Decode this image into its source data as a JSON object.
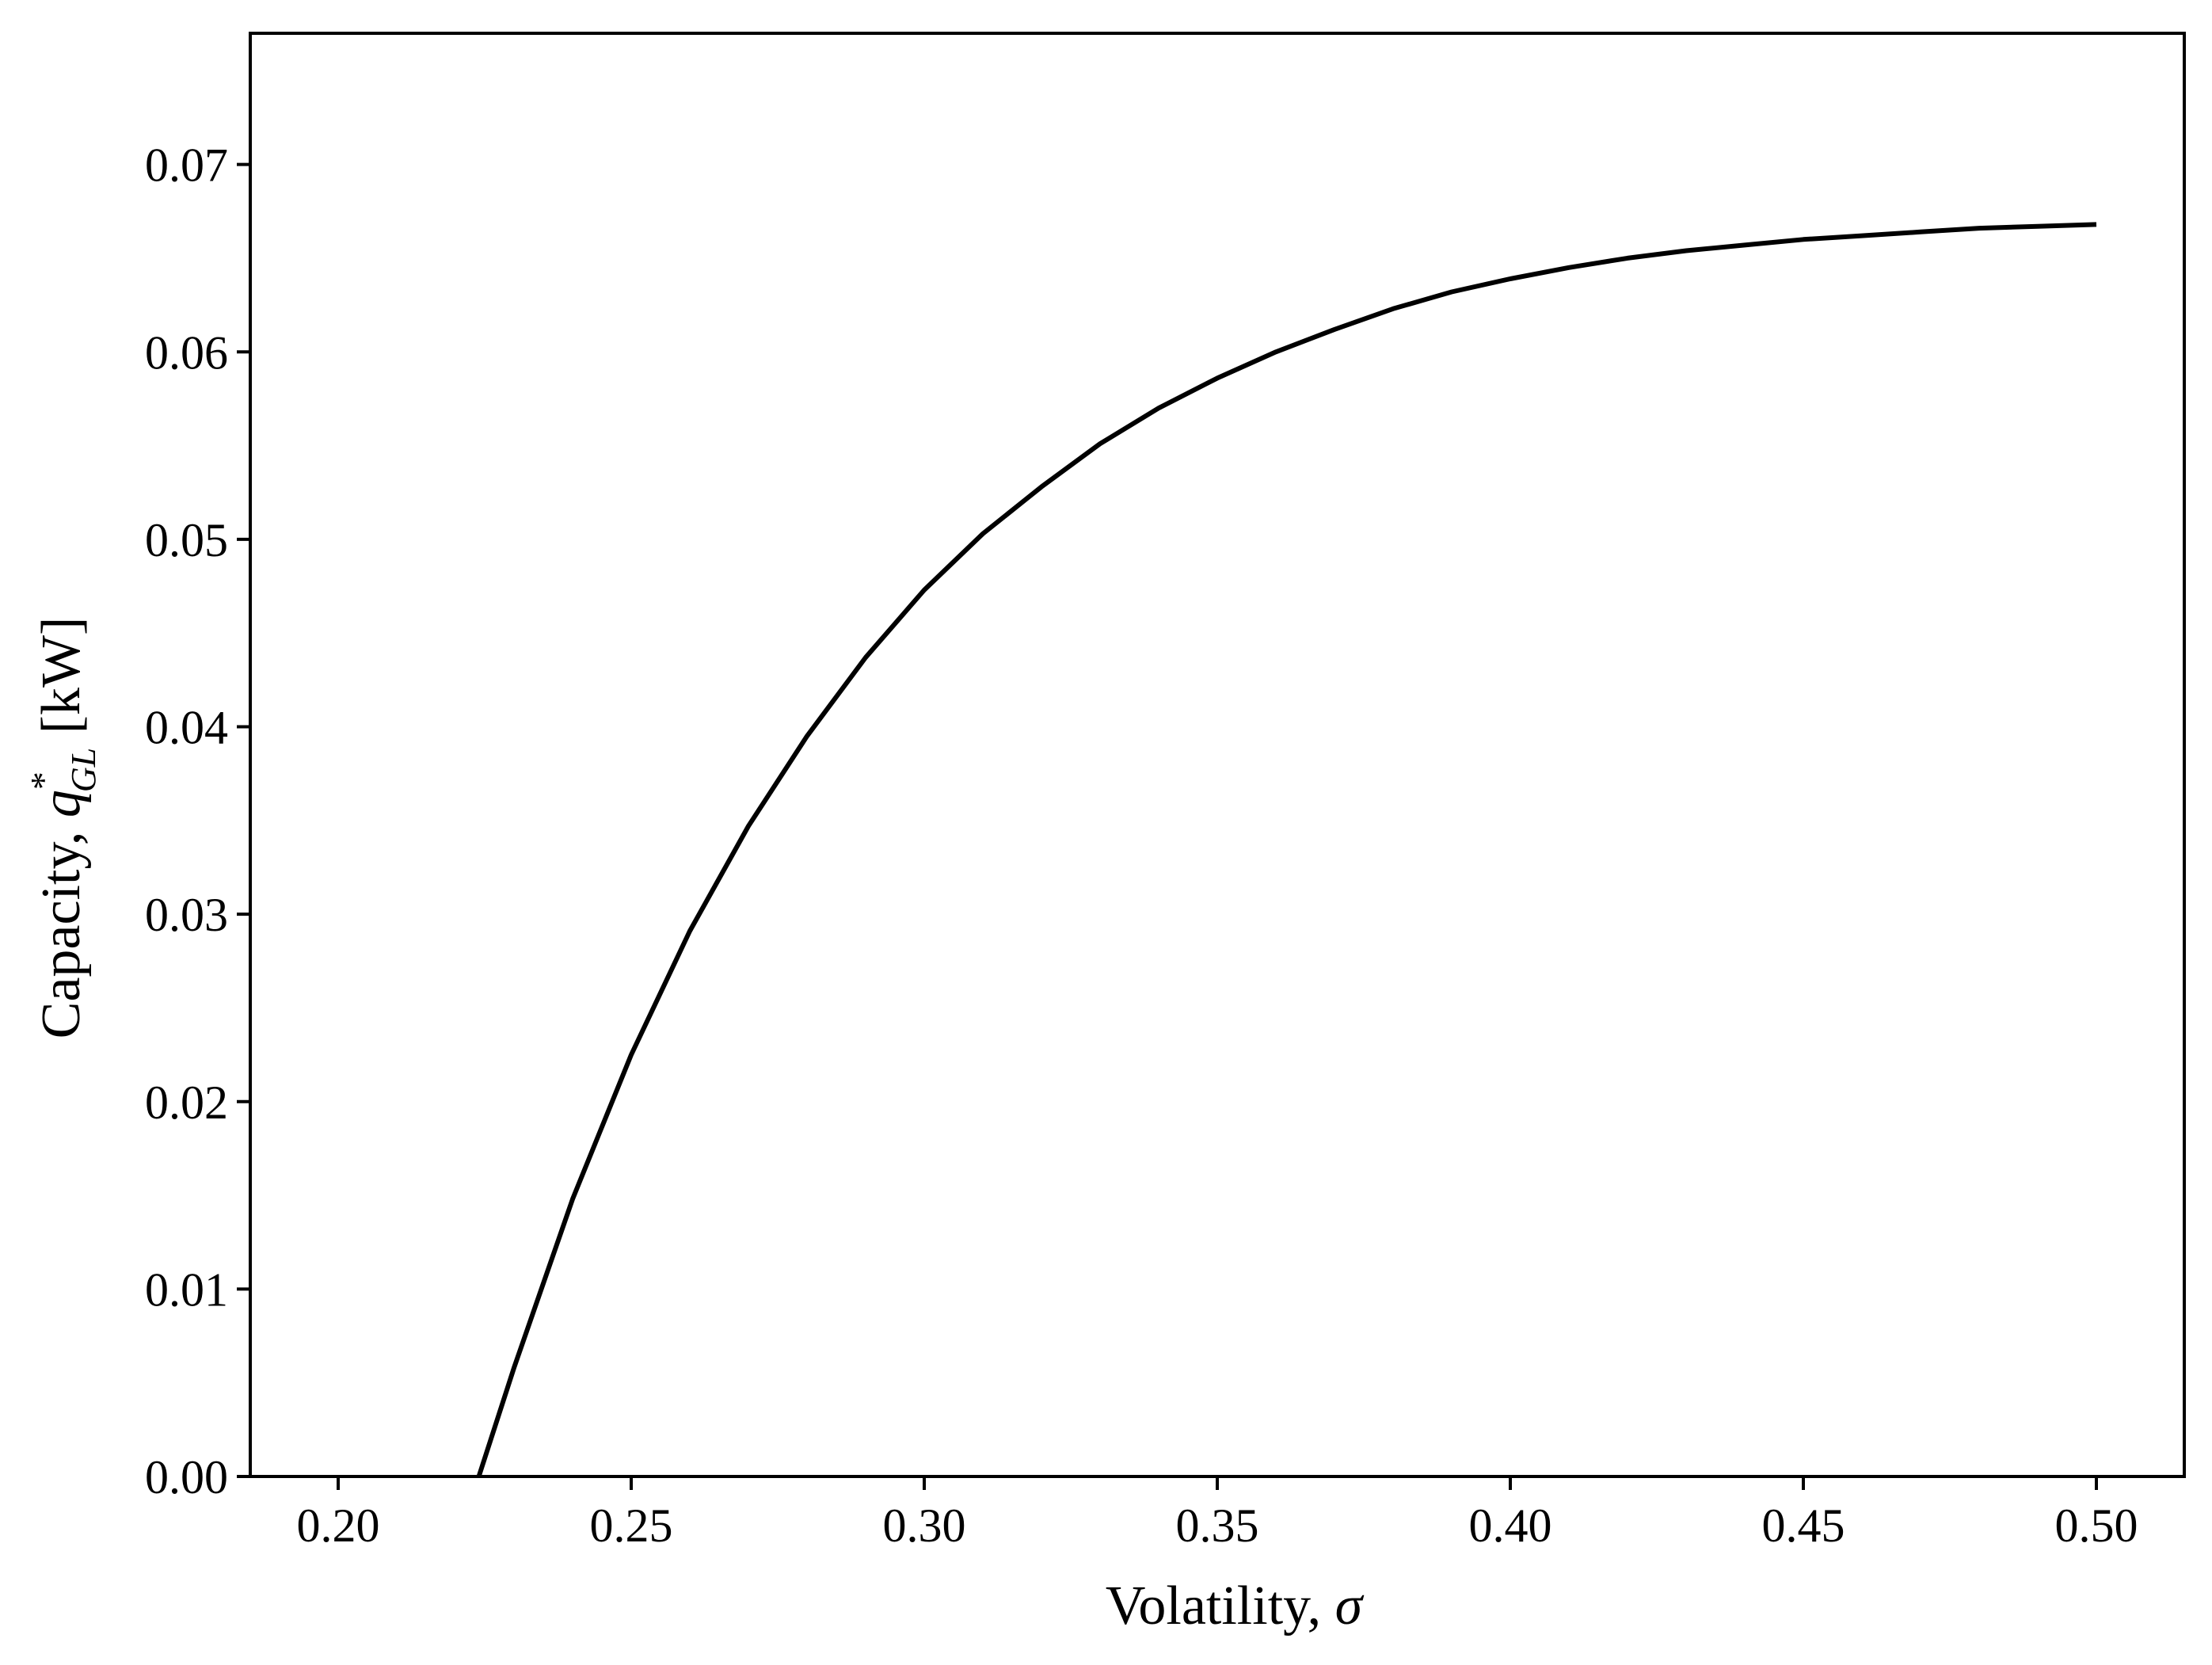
{
  "chart_data": {
    "type": "line",
    "title": "",
    "xlabel": {
      "prefix": "Volatility, ",
      "symbol": "σ"
    },
    "ylabel": {
      "prefix": "Capacity, ",
      "symbol": "q",
      "superscript": "*",
      "subscript": "GL",
      "unit": " [kW]"
    },
    "xlim": [
      0.185,
      0.515
    ],
    "ylim": [
      0.0,
      0.077
    ],
    "xticks": [
      0.2,
      0.25,
      0.3,
      0.35,
      0.4,
      0.45,
      0.5
    ],
    "xtick_labels": [
      "0.20",
      "0.25",
      "0.30",
      "0.35",
      "0.40",
      "0.45",
      "0.50"
    ],
    "yticks": [
      0.0,
      0.01,
      0.02,
      0.03,
      0.04,
      0.05,
      0.06,
      0.07
    ],
    "ytick_labels": [
      "0.00",
      "0.01",
      "0.02",
      "0.03",
      "0.04",
      "0.05",
      "0.06",
      "0.07"
    ],
    "grid": false,
    "legend": "none",
    "series": [
      {
        "color": "#000000",
        "x": [
          0.224,
          0.23,
          0.24,
          0.25,
          0.26,
          0.27,
          0.28,
          0.29,
          0.3,
          0.31,
          0.32,
          0.33,
          0.34,
          0.35,
          0.36,
          0.37,
          0.38,
          0.39,
          0.4,
          0.41,
          0.42,
          0.43,
          0.44,
          0.45,
          0.46,
          0.47,
          0.48,
          0.49,
          0.5
        ],
        "y": [
          0.0,
          0.0058,
          0.0148,
          0.0225,
          0.0291,
          0.0347,
          0.0395,
          0.0437,
          0.0473,
          0.0503,
          0.0528,
          0.0551,
          0.057,
          0.0586,
          0.06,
          0.0612,
          0.0623,
          0.0632,
          0.0639,
          0.0645,
          0.065,
          0.0654,
          0.0657,
          0.066,
          0.0662,
          0.0664,
          0.0666,
          0.0667,
          0.0668
        ]
      }
    ]
  }
}
